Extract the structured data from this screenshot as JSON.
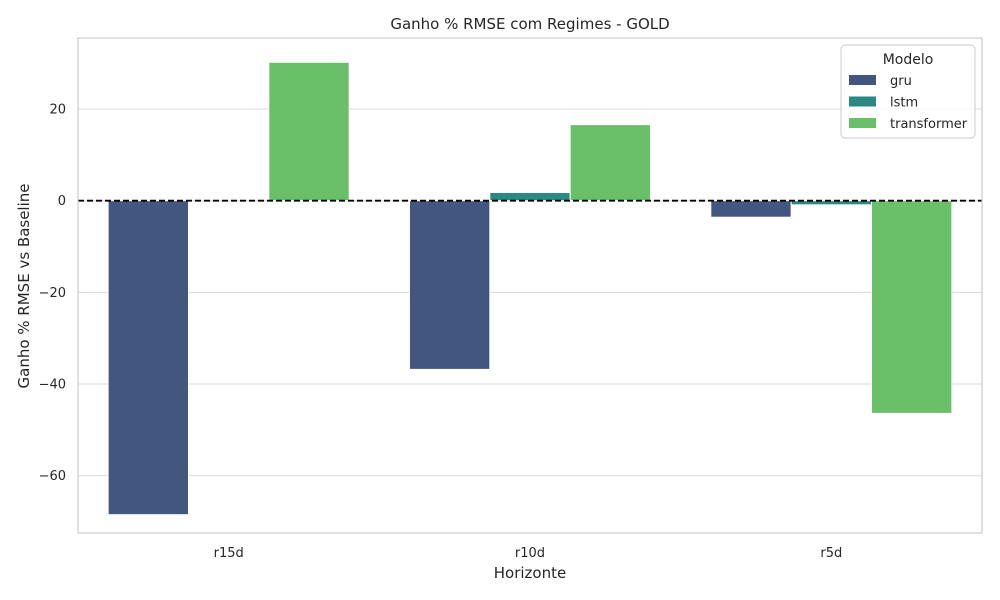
{
  "chart_data": {
    "type": "bar",
    "title": "Ganho % RMSE com Regimes - GOLD",
    "xlabel": "Horizonte",
    "ylabel": "Ganho % RMSE vs Baseline",
    "categories": [
      "r15d",
      "r10d",
      "r5d"
    ],
    "series": [
      {
        "name": "gru",
        "color": "#43567f",
        "values": [
          -68.5,
          -36.8,
          -3.6
        ]
      },
      {
        "name": "lstm",
        "color": "#2a8a7f",
        "values": [
          0.0,
          1.8,
          -0.9
        ]
      },
      {
        "name": "transformer",
        "color": "#6abf69",
        "values": [
          30.2,
          16.6,
          -46.4
        ]
      }
    ],
    "ylim": [
      -72.5,
      35.5
    ],
    "yticks": [
      -60,
      -40,
      -20,
      0,
      20
    ],
    "ytick_labels": [
      "−60",
      "−40",
      "−20",
      "0",
      "20"
    ],
    "reference_line": {
      "y": 0,
      "style": "dashed",
      "color": "#000000"
    },
    "grid": true,
    "legend": {
      "title": "Modelo",
      "placement": "top-right"
    }
  }
}
